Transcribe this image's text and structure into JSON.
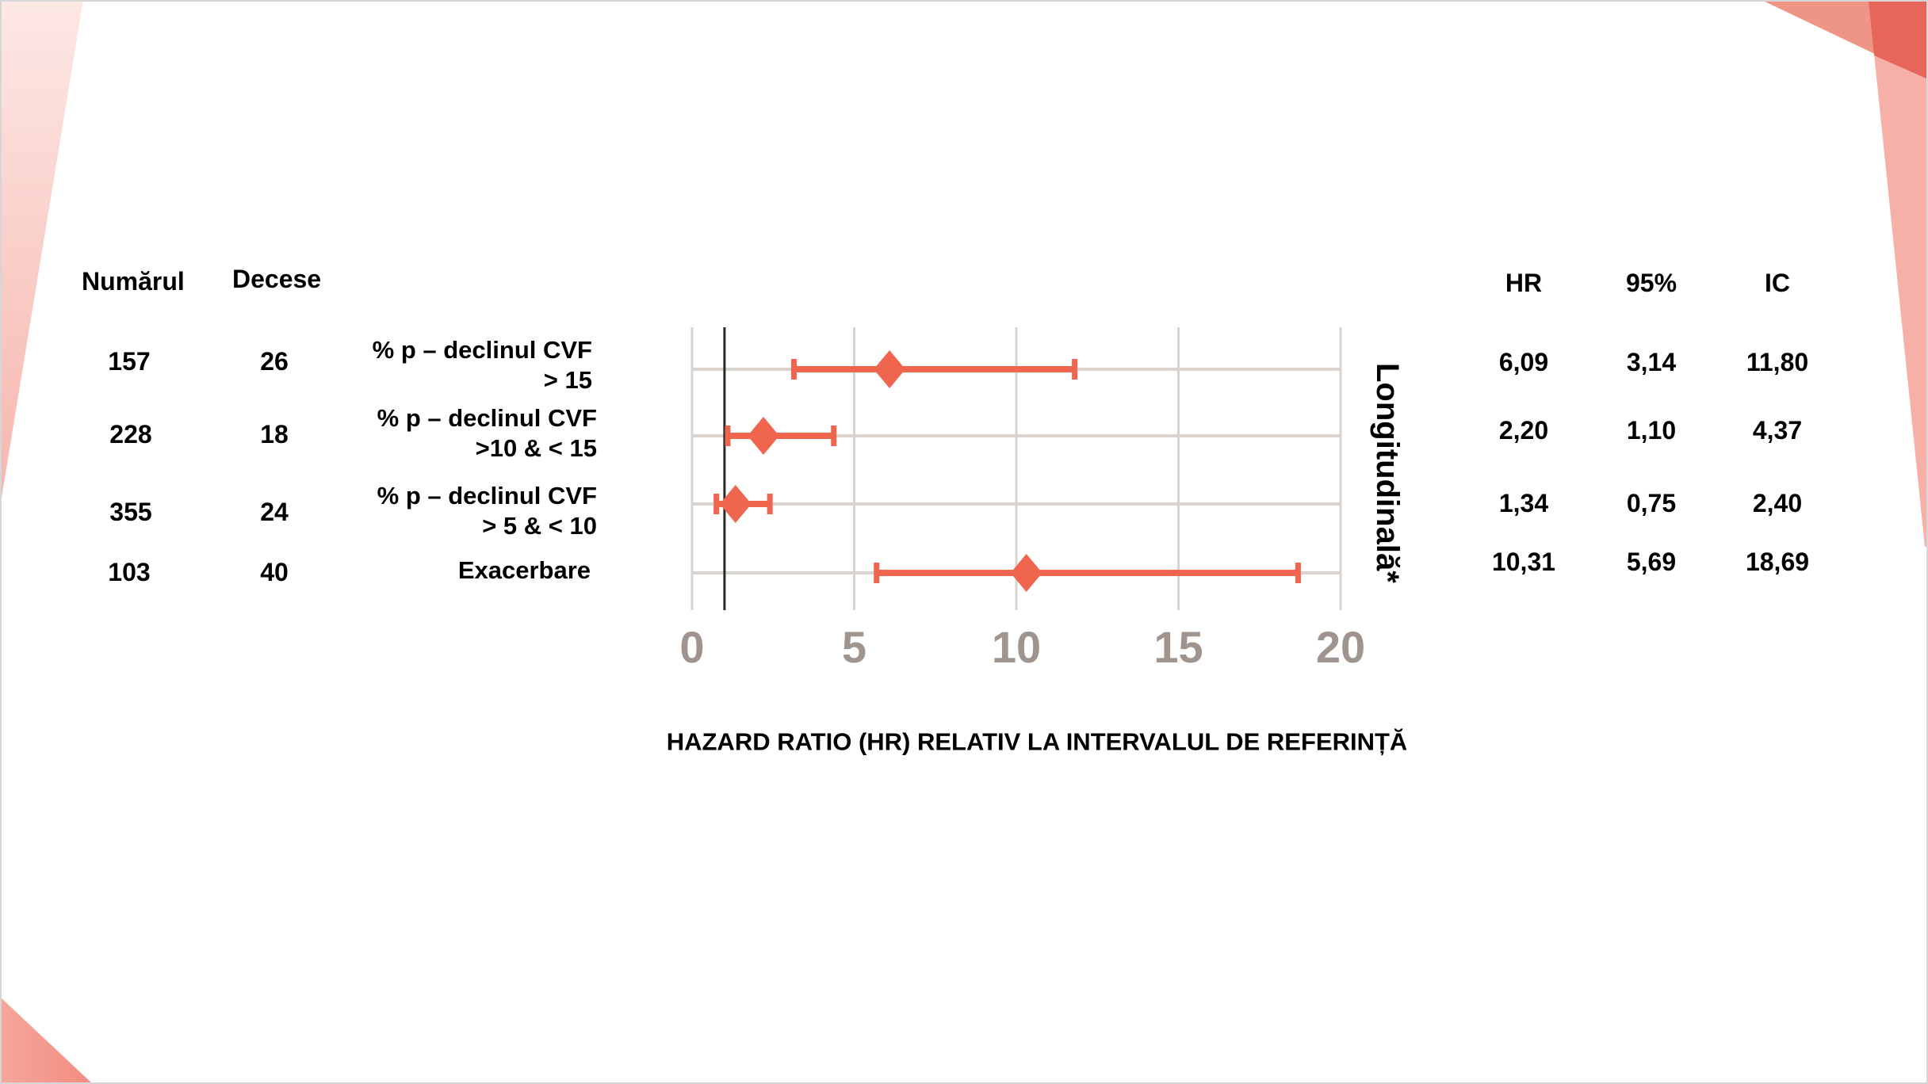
{
  "left_table": {
    "headers": {
      "numar": "Numărul",
      "decese": "Decese"
    },
    "rows": [
      {
        "numar": "157",
        "decese": "26"
      },
      {
        "numar": "228",
        "decese": "18"
      },
      {
        "numar": "355",
        "decese": "24"
      },
      {
        "numar": "103",
        "decese": "40"
      }
    ]
  },
  "labels": [
    {
      "line1": "% p – declinul CVF",
      "line2": "> 15"
    },
    {
      "line1": "% p – declinul CVF",
      "line2": ">10 & < 15"
    },
    {
      "line1": "% p – declinul CVF",
      "line2": "> 5 & < 10"
    },
    {
      "line1": "Exacerbare",
      "line2": ""
    }
  ],
  "right_table": {
    "headers": {
      "hr": "HR",
      "ci_pct": "95%",
      "ci": "IC"
    },
    "rows": [
      {
        "hr": "6,09",
        "lo": "3,14",
        "hi": "11,80"
      },
      {
        "hr": "2,20",
        "lo": "1,10",
        "hi": "4,37"
      },
      {
        "hr": "1,34",
        "lo": "0,75",
        "hi": "2,40"
      },
      {
        "hr": "10,31",
        "lo": "5,69",
        "hi": "18,69"
      }
    ]
  },
  "side_label": "Longitudinală*",
  "axis_title": "HAZARD RATIO (HR) RELATIV LA INTERVALUL DE REFERINȚĂ",
  "ticks": [
    "0",
    "5",
    "10",
    "15",
    "20"
  ],
  "colors": {
    "marker": "#F0654E",
    "grid": "#D9D3D0",
    "reference_line": "#2a2a2a",
    "tick_label": "#A0948E",
    "deco_light": "#F6B0A7",
    "deco_mid": "#EF9585",
    "deco_dark": "#E8655A"
  },
  "chart_data": {
    "type": "forest",
    "title": "",
    "xlabel": "HAZARD RATIO (HR) RELATIV LA INTERVALUL DE REFERINȚĂ",
    "ylabel": "Longitudinală*",
    "xlim": [
      0,
      20
    ],
    "xticks": [
      0,
      5,
      10,
      15,
      20
    ],
    "reference_line": 1,
    "grid": true,
    "categories": [
      "% p – declinul CVF > 15",
      "% p – declinul CVF >10 & < 15",
      "% p – declinul CVF > 5 & < 10",
      "Exacerbare"
    ],
    "n": [
      157,
      228,
      355,
      103
    ],
    "deaths": [
      26,
      18,
      24,
      40
    ],
    "hr": [
      6.09,
      2.2,
      1.34,
      10.31
    ],
    "ci_low": [
      3.14,
      1.1,
      0.75,
      5.69
    ],
    "ci_high": [
      11.8,
      4.37,
      2.4,
      18.69
    ]
  }
}
